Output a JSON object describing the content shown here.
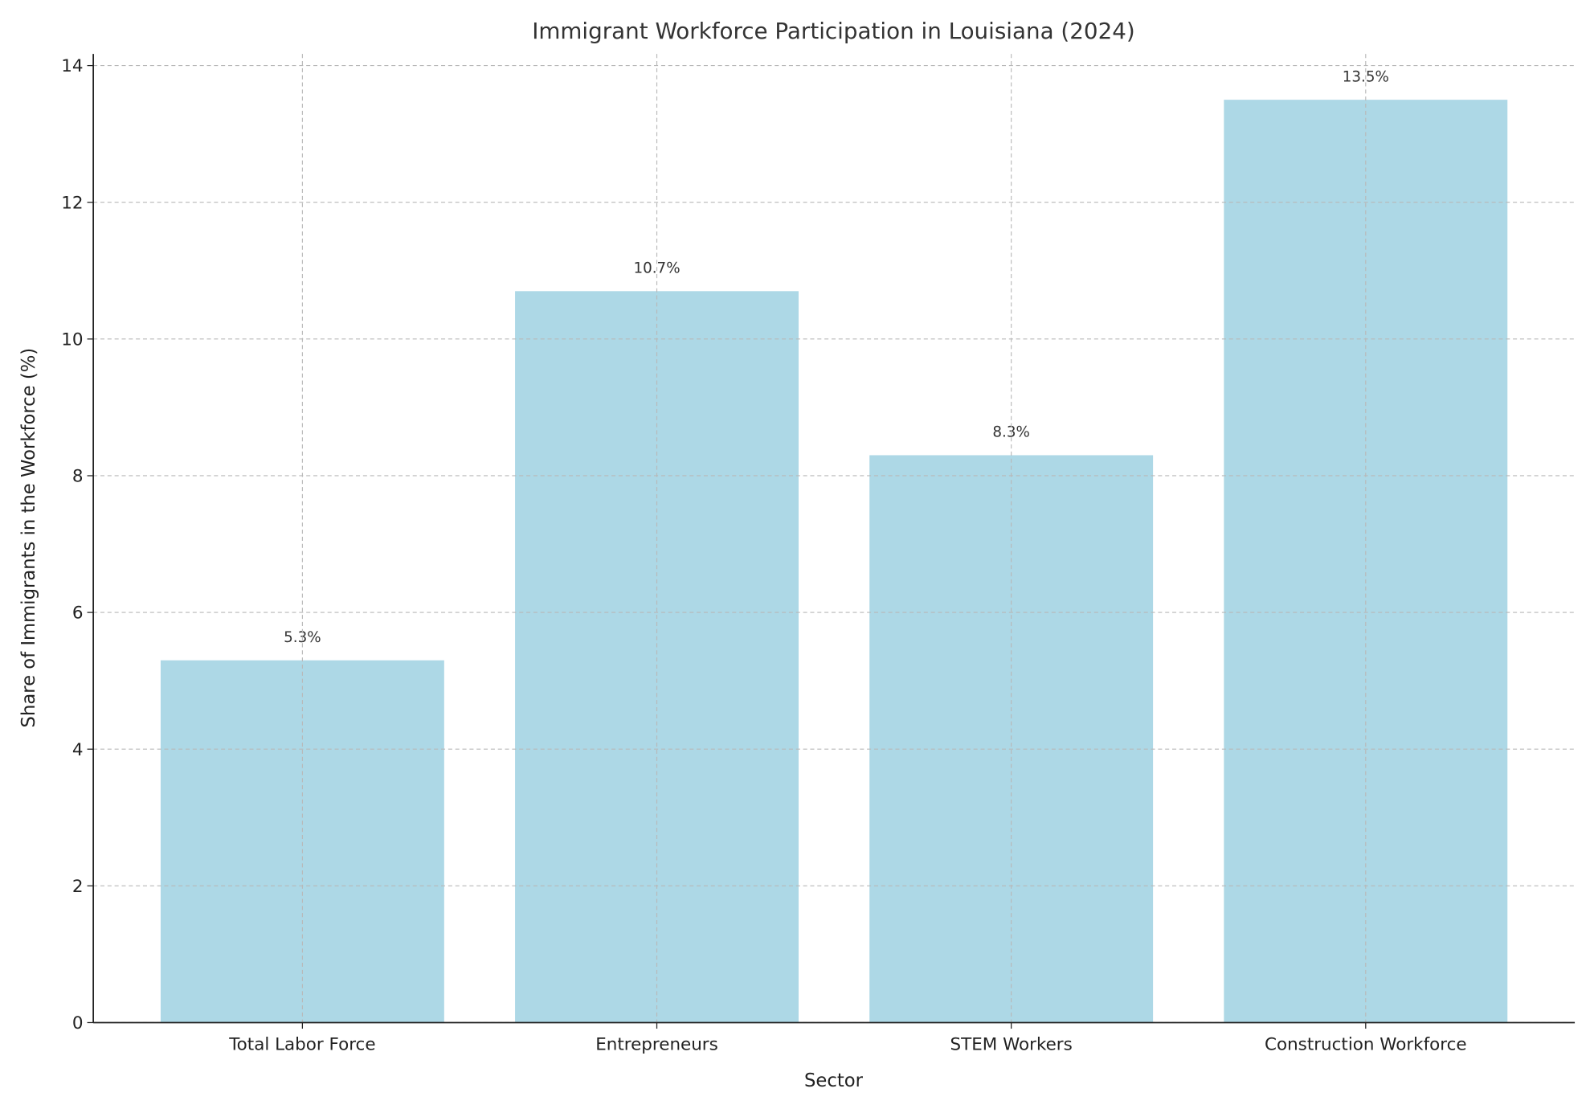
{
  "chart_data": {
    "type": "bar",
    "title": "Immigrant Workforce Participation in Louisiana (2024)",
    "xlabel": "Sector",
    "ylabel": "Share of Immigrants in the Workforce (%)",
    "categories": [
      "Total Labor Force",
      "Entrepreneurs",
      "STEM Workers",
      "Construction Workforce"
    ],
    "values": [
      5.3,
      10.7,
      8.3,
      13.5
    ],
    "data_labels": [
      "5.3%",
      "10.7%",
      "8.3%",
      "13.5%"
    ],
    "ylim": [
      0,
      14.17
    ],
    "yticks": [
      0,
      2,
      4,
      6,
      8,
      10,
      12,
      14
    ],
    "grid": true,
    "bar_color": "#add8e6"
  }
}
